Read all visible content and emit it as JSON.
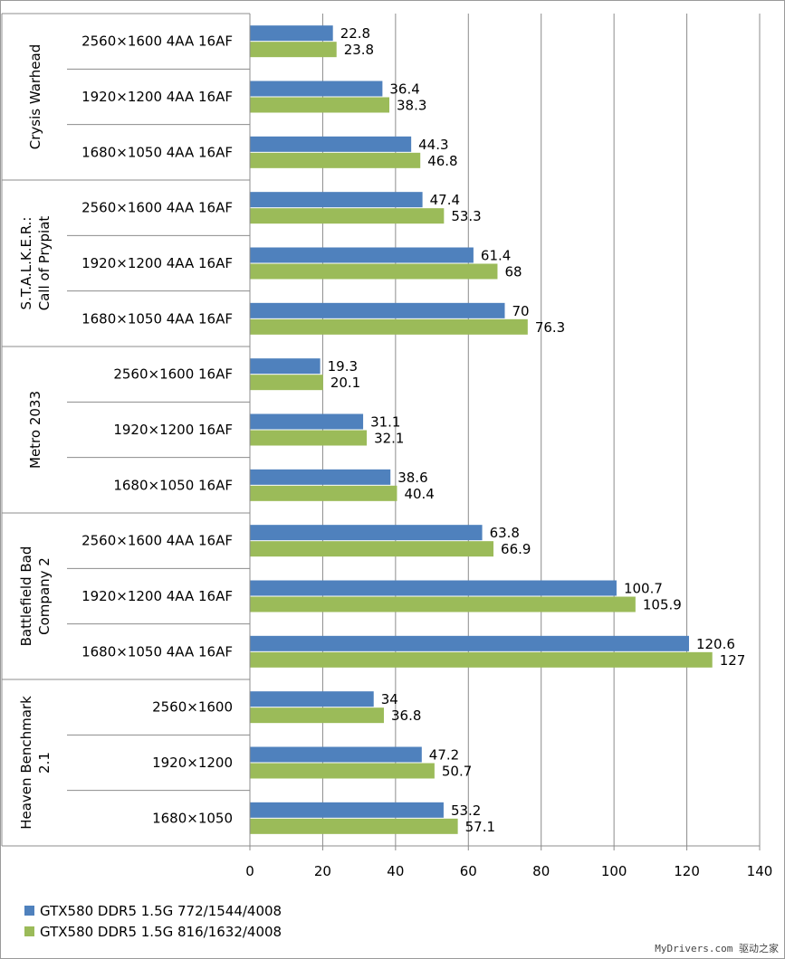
{
  "chart_data": {
    "type": "bar",
    "orientation": "horizontal",
    "groups": [
      {
        "name": "Crysis Warhead",
        "categories": [
          "2560×1600 4AA 16AF",
          "1920×1200 4AA 16AF",
          "1680×1050 4AA 16AF"
        ]
      },
      {
        "name": "S.T.A.L.K.E.R.: Call of Prypiat",
        "categories": [
          "2560×1600 4AA 16AF",
          "1920×1200 4AA 16AF",
          "1680×1050 4AA 16AF"
        ]
      },
      {
        "name": "Metro 2033",
        "categories": [
          "2560×1600 16AF",
          "1920×1200 16AF",
          "1680×1050 16AF"
        ]
      },
      {
        "name": "Battlefield Bad Company 2",
        "categories": [
          "2560×1600 4AA 16AF",
          "1920×1200 4AA 16AF",
          "1680×1050 4AA 16AF"
        ]
      },
      {
        "name": "Heaven Benchmark 2.1",
        "categories": [
          "2560×1600",
          "1920×1200",
          "1680×1050"
        ]
      }
    ],
    "series": [
      {
        "name": "GTX580 DDR5 1.5G 772/1544/4008",
        "color": "#4f81bd",
        "values": [
          22.8,
          36.4,
          44.3,
          47.4,
          61.4,
          70,
          19.3,
          31.1,
          38.6,
          63.8,
          100.7,
          120.6,
          34,
          47.2,
          53.2
        ]
      },
      {
        "name": "GTX580 DDR5 1.5G 816/1632/4008",
        "color": "#9bbb59",
        "values": [
          23.8,
          38.3,
          46.8,
          53.3,
          68,
          76.3,
          20.1,
          32.1,
          40.4,
          66.9,
          105.9,
          127,
          36.8,
          50.7,
          57.1
        ]
      }
    ],
    "xlim": [
      0,
      140
    ],
    "xticks": [
      0,
      20,
      40,
      60,
      80,
      100,
      120,
      140
    ],
    "grid": true,
    "legend_position": "bottom-left"
  },
  "watermark": "MyDrivers.com 驱动之家"
}
